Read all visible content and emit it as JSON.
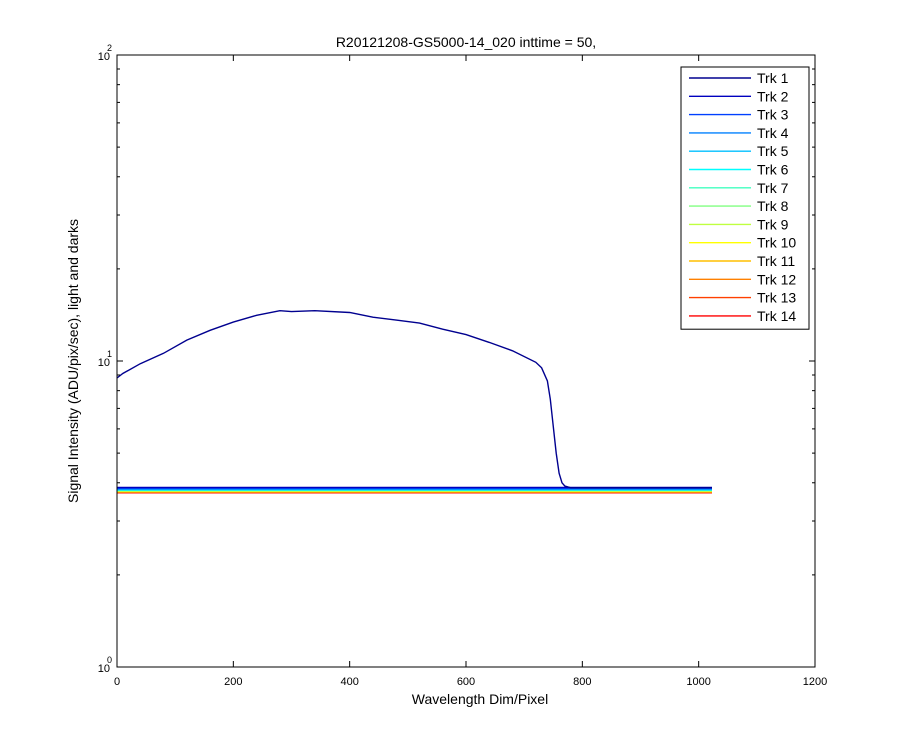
{
  "chart_data": {
    "type": "line",
    "title": "R20121208-GS5000-14_020 inttime = 50,",
    "xlabel": "Wavelength Dim/Pixel",
    "ylabel": "Signal Intensity (ADU/pix/sec), light and darks",
    "xlim": [
      0,
      1200
    ],
    "ylim": [
      1,
      100
    ],
    "yscale": "log",
    "grid": false,
    "legend_position": "top-right",
    "x_ticks": [
      {
        "value": 0,
        "label": "0"
      },
      {
        "value": 200,
        "label": "200"
      },
      {
        "value": 400,
        "label": "400"
      },
      {
        "value": 600,
        "label": "600"
      },
      {
        "value": 800,
        "label": "800"
      },
      {
        "value": 1000,
        "label": "1000"
      },
      {
        "value": 1200,
        "label": "1200"
      }
    ],
    "y_ticks": [
      {
        "value": 1,
        "base": "10",
        "exp": "0"
      },
      {
        "value": 10,
        "base": "10",
        "exp": "1"
      },
      {
        "value": 100,
        "base": "10",
        "exp": "2"
      }
    ],
    "series": [
      {
        "name": "Trk 1",
        "color": "#00008f",
        "x": [
          0,
          10,
          40,
          80,
          120,
          160,
          200,
          240,
          280,
          300,
          340,
          400,
          440,
          480,
          520,
          560,
          600,
          640,
          680,
          720,
          730,
          740,
          745,
          750,
          755,
          760,
          765,
          770,
          780,
          800,
          850,
          900,
          950,
          1000,
          1023
        ],
        "y": [
          8.8,
          9.1,
          9.8,
          10.6,
          11.7,
          12.6,
          13.4,
          14.1,
          14.6,
          14.5,
          14.6,
          14.4,
          13.9,
          13.6,
          13.3,
          12.7,
          12.2,
          11.5,
          10.8,
          9.9,
          9.5,
          8.6,
          7.5,
          6.1,
          5.0,
          4.3,
          4.0,
          3.9,
          3.85,
          3.85,
          3.85,
          3.85,
          3.85,
          3.85,
          3.85
        ]
      },
      {
        "name": "Trk 2",
        "color": "#0000bf",
        "x": [
          0,
          1023
        ],
        "y": [
          3.86,
          3.86
        ]
      },
      {
        "name": "Trk 3",
        "color": "#0040ff",
        "x": [
          0,
          1023
        ],
        "y": [
          3.84,
          3.84
        ]
      },
      {
        "name": "Trk 4",
        "color": "#0080ff",
        "x": [
          0,
          1023
        ],
        "y": [
          3.82,
          3.82
        ]
      },
      {
        "name": "Trk 5",
        "color": "#00bfff",
        "x": [
          0,
          1023
        ],
        "y": [
          3.8,
          3.8
        ]
      },
      {
        "name": "Trk 6",
        "color": "#00ffff",
        "x": [
          0,
          1023
        ],
        "y": [
          3.79,
          3.79
        ]
      },
      {
        "name": "Trk 7",
        "color": "#40ffbf",
        "x": [
          0,
          1023
        ],
        "y": [
          3.78,
          3.78
        ]
      },
      {
        "name": "Trk 8",
        "color": "#80ff80",
        "x": [
          0,
          1023
        ],
        "y": [
          3.77,
          3.77
        ]
      },
      {
        "name": "Trk 9",
        "color": "#bfff40",
        "x": [
          0,
          1023
        ],
        "y": [
          3.76,
          3.76
        ]
      },
      {
        "name": "Trk 10",
        "color": "#ffff00",
        "x": [
          0,
          1023
        ],
        "y": [
          3.75,
          3.75
        ]
      },
      {
        "name": "Trk 11",
        "color": "#ffbf00",
        "x": [
          0,
          1023
        ],
        "y": [
          3.74,
          3.74
        ]
      },
      {
        "name": "Trk 12",
        "color": "#ff8000",
        "x": [
          0,
          1023
        ],
        "y": [
          3.73,
          3.73
        ]
      },
      {
        "name": "Trk 13",
        "color": "#ff4000",
        "x": [
          0,
          1023
        ],
        "y": [
          3.72,
          3.72
        ]
      },
      {
        "name": "Trk 14",
        "color": "#ff0000",
        "x": [
          0,
          1023
        ],
        "y": [
          3.71,
          3.71
        ]
      }
    ]
  }
}
